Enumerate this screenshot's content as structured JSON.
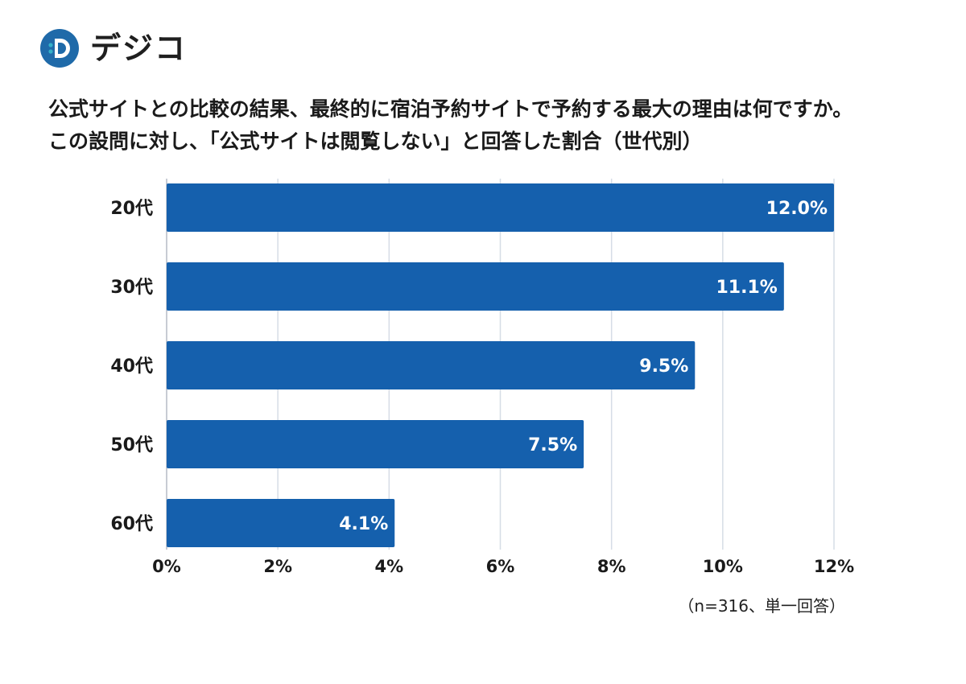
{
  "logo": {
    "text": "デジコ",
    "icon": "digico-d-logo-icon",
    "colors": {
      "primary": "#1f6aa9",
      "accent": "#33b1c9"
    }
  },
  "title": {
    "line1": "公式サイトとの比較の結果、最終的に宿泊予約サイトで予約する最大の理由は何ですか。",
    "line2": "この設問に対し、「公式サイトは閲覧しない」と回答した割合（世代別）"
  },
  "note": "（n=316、単一回答）",
  "chart_data": {
    "type": "bar",
    "orientation": "horizontal",
    "categories": [
      "20代",
      "30代",
      "40代",
      "50代",
      "60代"
    ],
    "values": [
      12.0,
      11.1,
      9.5,
      7.5,
      4.1
    ],
    "value_labels": [
      "12.0%",
      "11.1%",
      "9.5%",
      "7.5%",
      "4.1%"
    ],
    "xlim": [
      0,
      12
    ],
    "xticks": [
      0,
      2,
      4,
      6,
      8,
      10,
      12
    ],
    "xtick_labels": [
      "0%",
      "2%",
      "4%",
      "6%",
      "8%",
      "10%",
      "12%"
    ],
    "grid": true,
    "bar_color": "#1560ad",
    "grid_color": "#d6dde6"
  }
}
